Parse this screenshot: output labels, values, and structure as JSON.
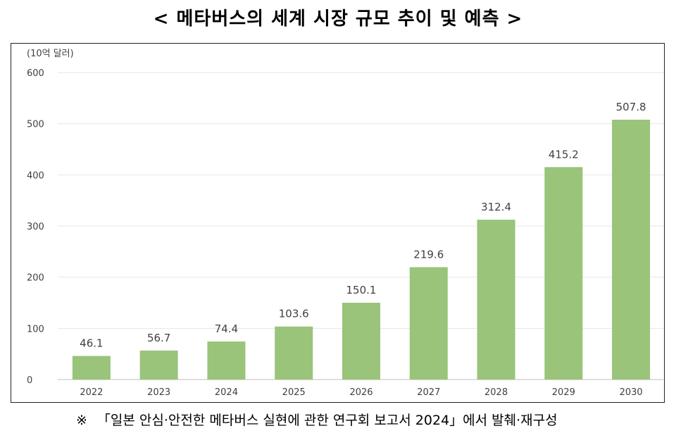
{
  "title": "< 메타버스의 세계 시장 규모 추이 및 예측 >",
  "unit_label": "(10억 달러)",
  "footnote": {
    "mark": "※",
    "text": "「일본 안심·안전한 메타버스 실현에 관한 연구회 보고서 2024」에서 발췌·재구성"
  },
  "colors": {
    "bar": "#99c47a",
    "grid": "#e6e6e6",
    "axis": "#bfbfbf",
    "text": "#404040"
  },
  "chart_data": {
    "type": "bar",
    "categories": [
      "2022",
      "2023",
      "2024",
      "2025",
      "2026",
      "2027",
      "2028",
      "2029",
      "2030"
    ],
    "values": [
      46.1,
      56.7,
      74.4,
      103.6,
      150.1,
      219.6,
      312.4,
      415.2,
      507.8
    ],
    "value_labels": [
      "46.1",
      "56.7",
      "74.4",
      "103.6",
      "150.1",
      "219.6",
      "312.4",
      "415.2",
      "507.8"
    ],
    "ylim": [
      0,
      600
    ],
    "yticks": [
      "0",
      "100",
      "200",
      "300",
      "400",
      "500",
      "600"
    ],
    "ytick_values": [
      0,
      100,
      200,
      300,
      400,
      500,
      600
    ],
    "grid": true,
    "xlabel": "",
    "ylabel": "(10억 달러)"
  }
}
